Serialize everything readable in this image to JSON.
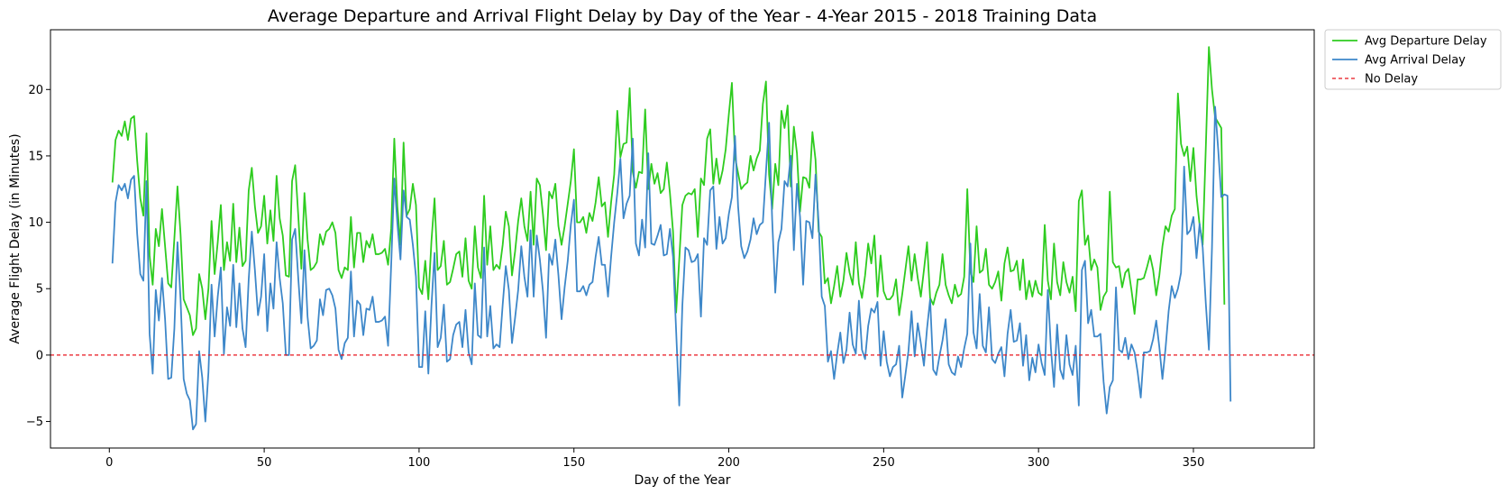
{
  "chart_data": {
    "type": "line",
    "title": "Average Departure and Arrival Flight Delay by Day of the Year - 4-Year 2015 - 2018 Training Data",
    "xlabel": "Day of the Year",
    "ylabel": "Average Flight Delay (in Minutes)",
    "xlim": [
      -19,
      389
    ],
    "ylim": [
      -7,
      24.5
    ],
    "xticks": [
      0,
      50,
      100,
      150,
      200,
      250,
      300,
      350
    ],
    "yticks": [
      -5,
      0,
      5,
      10,
      15,
      20
    ],
    "grid": false,
    "legend_position": "outside-top-right",
    "reference_line": {
      "name": "No Delay",
      "y": 0,
      "color": "#e8141c",
      "style": "dashed"
    },
    "series": [
      {
        "name": "Avg Departure Delay",
        "color": "#2ecc1f",
        "x_start": 1,
        "values": [
          13,
          16.2,
          16.9,
          16.5,
          17.6,
          16.2,
          17.8,
          18,
          14.6,
          11.8,
          10.5,
          16.7,
          7.5,
          5.3,
          9.5,
          8.2,
          11,
          8.2,
          5.4,
          5.1,
          8.8,
          12.7,
          9.1,
          4.2,
          3.6,
          3,
          1.5,
          2,
          6.1,
          5,
          2.7,
          5,
          10.1,
          6.1,
          8.5,
          11.3,
          6.4,
          8.5,
          7.1,
          11.4,
          7,
          9.6,
          6.7,
          7.1,
          12.4,
          14.1,
          11.2,
          9.2,
          9.7,
          12,
          8.4,
          10.9,
          8.6,
          13.5,
          10.3,
          9,
          6,
          5.9,
          13.1,
          14.3,
          10.5,
          6.5,
          12.2,
          8.7,
          6.4,
          6.6,
          7,
          9.1,
          8.3,
          9.3,
          9.5,
          10,
          9.2,
          6.4,
          5.8,
          6.6,
          6.4,
          10.4,
          6.6,
          9.2,
          9.2,
          7,
          8.6,
          8.1,
          9.1,
          7.6,
          7.6,
          7.7,
          8,
          6.8,
          9.5,
          16.3,
          11.2,
          8.3,
          16,
          10.5,
          11,
          12.9,
          11.3,
          5.1,
          4.6,
          7.1,
          4.2,
          8.6,
          11.8,
          6.4,
          6.7,
          8.6,
          5.3,
          5.5,
          6.5,
          7.6,
          7.8,
          5.9,
          8.8,
          5.6,
          5,
          9.7,
          6.6,
          5.8,
          12,
          6.8,
          9.7,
          6.4,
          6.8,
          6.5,
          8.3,
          10.8,
          9.7,
          6,
          7.8,
          10.1,
          11.8,
          9.7,
          8.6,
          12.3,
          8.3,
          13.3,
          12.8,
          10.6,
          7.9,
          12.3,
          11.8,
          12.9,
          9.7,
          8.3,
          9.7,
          11.4,
          13.1,
          15.5,
          10,
          10,
          10.4,
          9.2,
          10.7,
          10.1,
          11.5,
          13.4,
          11.2,
          11.5,
          8.9,
          11.5,
          13.6,
          18.4,
          14.9,
          15.9,
          16,
          20.1,
          13.8,
          12.6,
          13.8,
          13.7,
          18.5,
          12.5,
          14.4,
          12.9,
          13.7,
          12.2,
          12.5,
          14.5,
          12.2,
          9.3,
          3.2,
          7.2,
          11.3,
          12,
          12.2,
          12.1,
          12.5,
          8.9,
          13.3,
          12.8,
          16.3,
          17,
          12.9,
          14.8,
          12.9,
          13.9,
          15.5,
          18.1,
          20.5,
          14.9,
          13.7,
          12.5,
          12.8,
          13,
          15,
          13.9,
          14.8,
          15.4,
          18.9,
          20.6,
          13.6,
          11,
          14.4,
          12.8,
          18.4,
          17.1,
          18.8,
          12.7,
          17.2,
          15.2,
          10.8,
          13.4,
          13.3,
          12.6,
          16.8,
          14.7,
          9.3,
          8.9,
          5.4,
          5.8,
          3.9,
          5.2,
          6.7,
          4.4,
          5.6,
          7.7,
          6.2,
          5.3,
          8.5,
          5.4,
          4.3,
          6,
          8.4,
          6.9,
          9,
          4.4,
          7.5,
          4.8,
          4.2,
          4.2,
          4.5,
          5.7,
          3,
          4.6,
          6.4,
          8.2,
          5.6,
          7.6,
          5.8,
          4.4,
          6.4,
          8.5,
          4.3,
          3.8,
          4.7,
          5.3,
          7.6,
          5.3,
          4.5,
          3.9,
          5.3,
          4.4,
          4.6,
          5.9,
          12.5,
          6.3,
          5.5,
          9.7,
          6.2,
          6.4,
          8,
          5.3,
          5,
          5.5,
          6.3,
          4.1,
          6.9,
          8.1,
          6.3,
          6.4,
          7.1,
          4.9,
          7.2,
          4.2,
          5.6,
          4.4,
          5.6,
          4.7,
          4.5,
          9.8,
          5.6,
          4.2,
          8.4,
          5.5,
          4.5,
          7,
          5.5,
          4.7,
          5.9,
          3.3,
          11.6,
          12.4,
          8.3,
          9,
          6.4,
          7.2,
          6.6,
          3.4,
          4.4,
          4.8,
          12.3,
          7,
          6.6,
          6.7,
          5.1,
          6.2,
          6.5,
          4.9,
          3.1,
          5.7,
          5.7,
          5.8,
          6.6,
          7.5,
          6.4,
          4.5,
          6,
          8.2,
          9.7,
          9.3,
          10.5,
          11,
          19.7,
          15.9,
          15,
          15.7,
          13.1,
          15.6,
          12,
          9.8,
          8.3,
          15.6,
          23.2,
          20,
          17.9,
          17.5,
          17.1,
          3.8
        ]
      },
      {
        "name": "Avg Arrival Delay",
        "color": "#3d87c9",
        "x_start": 1,
        "values": [
          6.9,
          11.5,
          12.8,
          12.4,
          12.9,
          11.8,
          13.2,
          13.5,
          9.1,
          6.1,
          5.6,
          13.1,
          1.6,
          -1.4,
          4.9,
          2.6,
          5.8,
          2.7,
          -1.8,
          -1.7,
          2,
          8.5,
          4.2,
          -1.8,
          -2.9,
          -3.4,
          -5.6,
          -5.2,
          0.3,
          -1.7,
          -5,
          -1.3,
          5.3,
          1.4,
          4.4,
          6.6,
          0.1,
          3.6,
          2.2,
          6.8,
          2.1,
          5.4,
          2,
          0.6,
          5.7,
          9.3,
          6.4,
          3,
          4.4,
          7.6,
          1.8,
          5.4,
          3.5,
          8.5,
          5.8,
          3.9,
          0,
          0,
          8.7,
          9.5,
          5.8,
          2.4,
          7.9,
          2.9,
          0.5,
          0.7,
          1.1,
          4.2,
          3,
          4.9,
          5,
          4.5,
          3.5,
          0.4,
          -0.3,
          0.9,
          1.3,
          6.3,
          1.4,
          4.1,
          3.8,
          1.5,
          3.5,
          3.4,
          4.4,
          2.5,
          2.5,
          2.6,
          2.9,
          0.7,
          6.8,
          13.3,
          9.9,
          7.2,
          12.4,
          10.4,
          10.2,
          8.3,
          5.9,
          -0.9,
          -0.9,
          3.3,
          -1.4,
          3.7,
          7.7,
          0.6,
          1.3,
          3.8,
          -0.5,
          -0.3,
          1.5,
          2.3,
          2.5,
          0.6,
          3.4,
          0.2,
          -0.7,
          5.4,
          1.5,
          1.3,
          8.1,
          1.4,
          3.7,
          0.5,
          0.8,
          0.6,
          3.8,
          6.7,
          4.9,
          0.9,
          2.8,
          4.9,
          8.2,
          5.9,
          4.4,
          9.4,
          4.4,
          9,
          7.2,
          4.8,
          1.3,
          7.6,
          6.8,
          8.7,
          6,
          2.7,
          5.1,
          7.1,
          9.8,
          11.7,
          4.8,
          4.8,
          5.2,
          4.5,
          5.3,
          5.5,
          7.4,
          8.9,
          6.8,
          6.8,
          4.4,
          7.4,
          10,
          12.2,
          14.8,
          10.3,
          11.4,
          12,
          16.3,
          8.4,
          7.5,
          10.2,
          8.1,
          15.2,
          8.4,
          8.3,
          9,
          9.8,
          7.5,
          7.6,
          9.5,
          7.4,
          1.8,
          -3.8,
          3.7,
          8.1,
          7.9,
          7,
          7.1,
          7.6,
          2.9,
          8.8,
          8.3,
          12.4,
          12.7,
          8,
          10.4,
          8.4,
          8.8,
          10.6,
          11.9,
          16.5,
          11.2,
          8.2,
          7.3,
          7.8,
          8.7,
          10.3,
          9.1,
          9.8,
          10,
          13.8,
          17.5,
          10.2,
          4.7,
          8.5,
          9.5,
          13.1,
          12.7,
          15,
          7.9,
          12.9,
          10.4,
          5.3,
          10.1,
          10,
          8.8,
          13.6,
          10,
          4.4,
          3.7,
          -0.5,
          0.3,
          -1.8,
          0.1,
          1.7,
          -0.6,
          0.4,
          3.2,
          0.8,
          0.1,
          4.1,
          0.4,
          -0.3,
          2.2,
          3.5,
          3.2,
          4,
          -0.8,
          1.8,
          -0.5,
          -1.6,
          -0.9,
          -0.7,
          0.7,
          -3.2,
          -1.5,
          0.3,
          3.3,
          -0.1,
          2.4,
          0.9,
          -0.8,
          2,
          4.2,
          -1.1,
          -1.5,
          -0.1,
          1.1,
          2.7,
          -0.7,
          -1.3,
          -1.5,
          -0.1,
          -0.9,
          0.5,
          1.6,
          8.4,
          1.7,
          0.5,
          4.6,
          0.7,
          0.2,
          3.6,
          -0.3,
          -0.6,
          0.1,
          0.6,
          -1.6,
          1.6,
          3.4,
          1,
          1.1,
          2.4,
          -0.8,
          1.5,
          -1.9,
          -0.2,
          -1.3,
          0.8,
          -0.6,
          -1.5,
          4.9,
          0.5,
          -2.4,
          2.3,
          -1.1,
          -1.8,
          1.5,
          -0.7,
          -1.5,
          0.7,
          -3.8,
          6.4,
          7.1,
          2.4,
          3.4,
          1.4,
          1.4,
          1.6,
          -2,
          -4.4,
          -2.4,
          -1.9,
          5.1,
          0.4,
          0.2,
          1.3,
          -0.3,
          0.8,
          0.2,
          -1.3,
          -3.2,
          0.2,
          0.2,
          0.3,
          1.2,
          2.6,
          0.6,
          -1.8,
          0.5,
          3.3,
          5.2,
          4.3,
          5,
          6.2,
          14.2,
          9.1,
          9.4,
          10.4,
          7.3,
          9.9,
          8.1,
          3.9,
          0.4,
          8.1,
          18.7,
          15.5,
          11.9,
          12.1,
          12,
          -3.5
        ]
      }
    ]
  }
}
